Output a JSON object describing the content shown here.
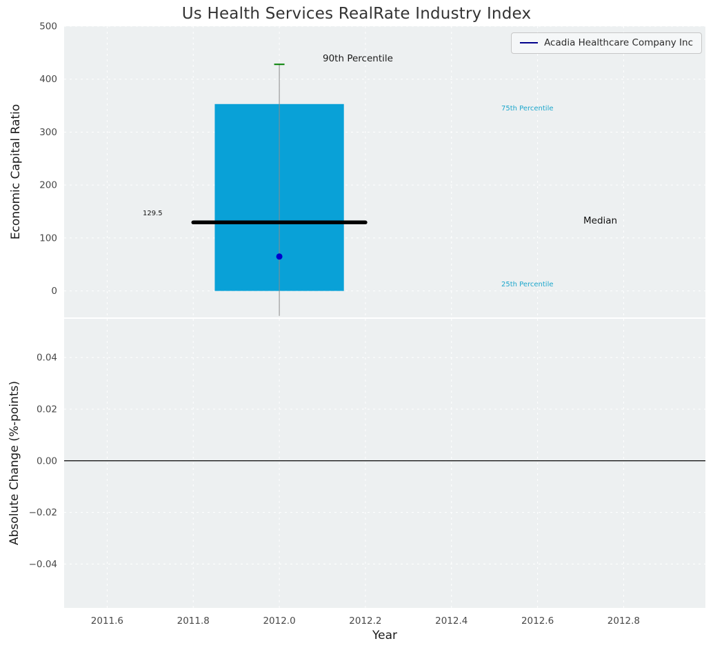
{
  "figure": {
    "title": "Us Health Services RealRate Industry Index"
  },
  "chart_data": {
    "type": "boxplot",
    "title": "Us Health Services RealRate Industry Index",
    "x": {
      "label": "Year",
      "xlim": [
        2011.5,
        2012.99
      ],
      "xticks": [
        2011.6,
        2011.8,
        2012.0,
        2012.2,
        2012.4,
        2012.6,
        2012.8
      ],
      "xtick_labels": [
        "2011.6",
        "2011.8",
        "2012.0",
        "2012.2",
        "2012.4",
        "2012.6",
        "2012.8"
      ]
    },
    "top_panel": {
      "ylabel": "Economic Capital Ratio",
      "ylim": [
        -50,
        500
      ],
      "yticks": [
        0,
        100,
        200,
        300,
        400,
        500
      ],
      "ytick_labels": [
        "0",
        "100",
        "200",
        "300",
        "400",
        "500"
      ],
      "grid": true,
      "box": {
        "year": 2012.0,
        "box_left": 2011.85,
        "box_right": 2012.15,
        "median_left": 2011.8,
        "median_right": 2012.2,
        "q1": 0,
        "median": 129.5,
        "q3": 353,
        "whisker_low": -47,
        "whisker_high": 428
      },
      "company_point": {
        "label": "Acadia Healthcare Company Inc",
        "year": 2012.0,
        "value": 65
      },
      "annotations": {
        "p90": "90th Percentile",
        "p75": "75th Percentile",
        "p25": "25th Percentile",
        "median": "Median",
        "median_value": "129.5"
      }
    },
    "bottom_panel": {
      "ylabel": "Absolute Change (%-points)",
      "ylim": [
        -0.057,
        0.055
      ],
      "yticks": [
        -0.04,
        -0.02,
        0,
        0.02,
        0.04
      ],
      "ytick_labels": [
        "−0.04",
        "−0.02",
        "0.00",
        "0.02",
        "0.04"
      ],
      "zero_line": 0.0
    },
    "legend": {
      "label": "Acadia Healthcare Company Inc",
      "line_color": "#00008b",
      "position": "upper right"
    },
    "colors": {
      "box_fill": "#09a1d7",
      "whisker": "#8a8a8a",
      "p90_cap": "#008000",
      "median_line": "#000000",
      "company_point": "#0000cd",
      "percentile_label": "#1ba6cc",
      "panel_bg": "#edf0f1",
      "grid": "#ffffff",
      "tick_label": "#474747",
      "zero_line": "#000000"
    }
  }
}
